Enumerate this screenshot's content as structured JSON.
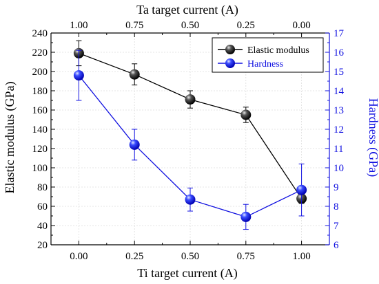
{
  "chart_data": {
    "type": "line",
    "xlabel_bottom": "Ti target current (A)",
    "xlabel_top": "Ta target current (A)",
    "ylabel_left": "Elastic modulus (GPa)",
    "ylabel_right": "Hardness (GPa)",
    "x": [
      0.0,
      0.25,
      0.5,
      0.75,
      1.0
    ],
    "x_ticks_bottom": [
      "0.00",
      "0.25",
      "0.50",
      "0.75",
      "1.00"
    ],
    "x_ticks_top": [
      "1.00",
      "0.75",
      "0.50",
      "0.25",
      "0.00"
    ],
    "xlim": [
      -0.125,
      1.125
    ],
    "ylim_left": [
      20,
      240
    ],
    "ylim_right": [
      6,
      17
    ],
    "y_ticks_left": [
      "20",
      "40",
      "60",
      "80",
      "100",
      "120",
      "140",
      "160",
      "180",
      "200",
      "220",
      "240"
    ],
    "y_ticks_right": [
      "6",
      "7",
      "8",
      "9",
      "10",
      "11",
      "12",
      "13",
      "14",
      "15",
      "16",
      "17"
    ],
    "grid": true,
    "legend_position": "top-right",
    "series": [
      {
        "name": "Elastic modulus",
        "axis": "left",
        "color": "#000000",
        "values": [
          219,
          197,
          171,
          155,
          68
        ],
        "errors": [
          13,
          11,
          9,
          8,
          5
        ]
      },
      {
        "name": "Hardness",
        "axis": "right",
        "color": "#1010e0",
        "values": [
          14.8,
          11.2,
          8.35,
          7.45,
          8.85
        ],
        "errors": [
          1.3,
          0.8,
          0.6,
          0.65,
          1.35
        ]
      }
    ]
  }
}
